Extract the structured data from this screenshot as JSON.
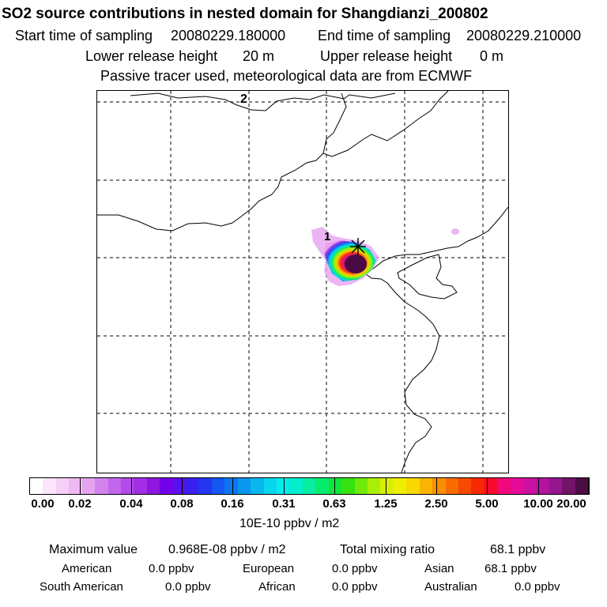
{
  "header": {
    "title": "SO2 source contributions in nested domain for Shangdianzi_200802",
    "start_label": "Start time of sampling",
    "start_value": "20080229.180000",
    "end_label": "End time of sampling",
    "end_value": "20080229.210000",
    "lower_label": "Lower release height",
    "lower_value": "20 m",
    "upper_label": "Upper release height",
    "upper_value": "0 m",
    "note": "Passive tracer used, meteorological data are from ECMWF"
  },
  "map": {
    "markers": [
      {
        "label": "2"
      },
      {
        "label": "1"
      }
    ],
    "station_symbol": "star-marker"
  },
  "colorbar": {
    "colors": [
      "#ffffff",
      "#fbe6fb",
      "#f6cff6",
      "#f0b8f3",
      "#e6a3f0",
      "#d284ee",
      "#c266ec",
      "#b24be9",
      "#a22ee6",
      "#8e16e0",
      "#7200e8",
      "#5612ea",
      "#3a20ee",
      "#2535f0",
      "#1656f2",
      "#0c76f2",
      "#0a97f0",
      "#07b7ee",
      "#07d6ee",
      "#04ecec",
      "#04eecc",
      "#06ee9f",
      "#08ec6e",
      "#10e63c",
      "#36e210",
      "#70ea08",
      "#a8ee06",
      "#d8ee04",
      "#eeee00",
      "#f8d800",
      "#f8b400",
      "#f89000",
      "#f86c00",
      "#f84a00",
      "#f82800",
      "#f80a2c",
      "#f2087a",
      "#e40c98",
      "#cc10a2",
      "#b2149e",
      "#961690",
      "#721468",
      "#4c0c44"
    ],
    "ticks": [
      "0.00",
      "0.02",
      "0.04",
      "0.08",
      "0.16",
      "0.31",
      "0.63",
      "1.25",
      "2.50",
      "5.00",
      "10.00",
      "20.00"
    ],
    "unit": "10E-10 ppbv / m2"
  },
  "stats": {
    "max_label": "Maximum value",
    "max_value": "0.968E-08 ppbv / m2",
    "total_label": "Total mixing ratio",
    "total_value": "68.1 ppbv",
    "regions": [
      {
        "name": "American",
        "value": "0.0 ppbv"
      },
      {
        "name": "European",
        "value": "0.0 ppbv"
      },
      {
        "name": "Asian",
        "value": "68.1 ppbv"
      },
      {
        "name": "South American",
        "value": "0.0 ppbv"
      },
      {
        "name": "African",
        "value": "0.0 ppbv"
      },
      {
        "name": "Australian",
        "value": "0.0 ppbv"
      }
    ]
  }
}
